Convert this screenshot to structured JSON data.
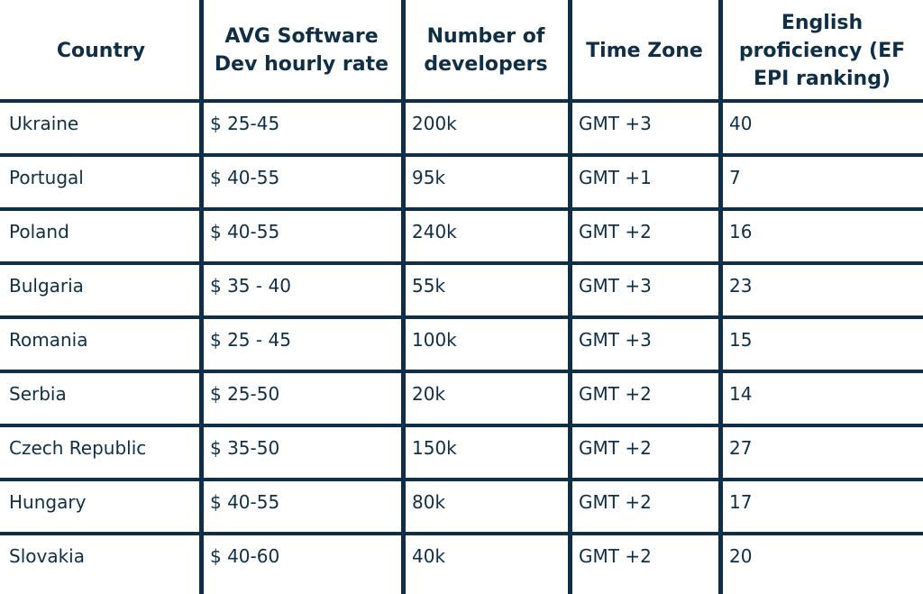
{
  "table": {
    "headers": [
      [
        "Country"
      ],
      [
        "AVG Software",
        "Dev hourly rate"
      ],
      [
        "Number of",
        "developers"
      ],
      [
        "Time Zone"
      ],
      [
        "English",
        "proficiency (EF",
        "EPI ranking)"
      ]
    ],
    "rows": [
      [
        "Ukraine",
        "$ 25-45",
        "200k",
        "GMT +3",
        "40"
      ],
      [
        "Portugal",
        "$ 40-55",
        "95k",
        "GMT +1",
        "7"
      ],
      [
        "Poland",
        "$ 40-55",
        "240k",
        "GMT +2",
        "16"
      ],
      [
        "Bulgaria",
        "$ 35 - 40",
        "55k",
        "GMT +3",
        "23"
      ],
      [
        "Romania",
        "$ 25 - 45",
        "100k",
        "GMT +3",
        "15"
      ],
      [
        "Serbia",
        "$ 25-50",
        "20k",
        "GMT +2",
        "14"
      ],
      [
        "Czech Republic",
        "$ 35-50",
        "150k",
        "GMT +2",
        "27"
      ],
      [
        "Hungary",
        "$ 40-55",
        "80k",
        "GMT +2",
        "17"
      ],
      [
        "Slovakia",
        "$ 40-60",
        "40k",
        "GMT +2",
        "20"
      ]
    ]
  }
}
